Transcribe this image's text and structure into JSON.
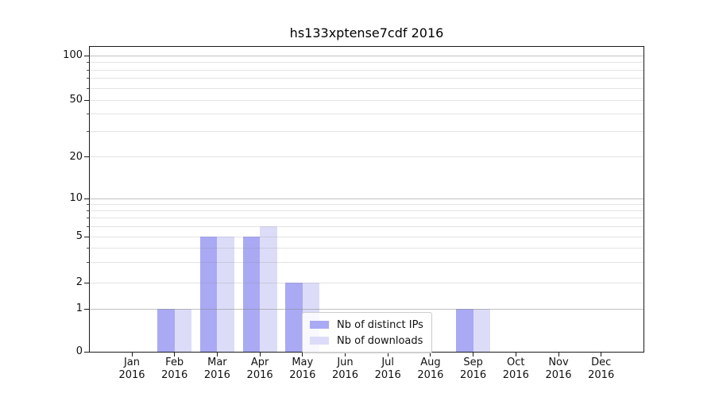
{
  "chart_data": {
    "type": "bar",
    "title": "hs133xptense7cdf 2016",
    "categories": [
      {
        "month": "Jan",
        "year": "2016"
      },
      {
        "month": "Feb",
        "year": "2016"
      },
      {
        "month": "Mar",
        "year": "2016"
      },
      {
        "month": "Apr",
        "year": "2016"
      },
      {
        "month": "May",
        "year": "2016"
      },
      {
        "month": "Jun",
        "year": "2016"
      },
      {
        "month": "Jul",
        "year": "2016"
      },
      {
        "month": "Aug",
        "year": "2016"
      },
      {
        "month": "Sep",
        "year": "2016"
      },
      {
        "month": "Oct",
        "year": "2016"
      },
      {
        "month": "Nov",
        "year": "2016"
      },
      {
        "month": "Dec",
        "year": "2016"
      }
    ],
    "series": [
      {
        "name": "Nb of distinct IPs",
        "color": "#a9a9f4",
        "values": [
          0,
          1,
          5,
          5,
          2,
          0,
          0,
          0,
          1,
          0,
          0,
          0
        ]
      },
      {
        "name": "Nb of downloads",
        "color": "#dcdcf9",
        "values": [
          0,
          1,
          5,
          6,
          2,
          0,
          0,
          0,
          1,
          0,
          0,
          0
        ]
      }
    ],
    "y_axis": {
      "tick_labels": [
        100,
        50,
        20,
        10,
        5,
        2,
        1,
        0
      ],
      "scale": "symlog",
      "ymin": 0,
      "ymax": 117
    },
    "grid": {
      "major_values": [
        1,
        10,
        100
      ],
      "minor_values": [
        2,
        3,
        4,
        5,
        6,
        7,
        8,
        9,
        20,
        30,
        40,
        50,
        60,
        70,
        80,
        90
      ],
      "color": "#8c8c8c"
    },
    "legend": {
      "position": "lower center",
      "border_color": "#cccccc",
      "background": "#ffffff"
    },
    "spine_color": "#1a1a1a",
    "text_color": "#000000",
    "figure_background": "#ffffff"
  }
}
